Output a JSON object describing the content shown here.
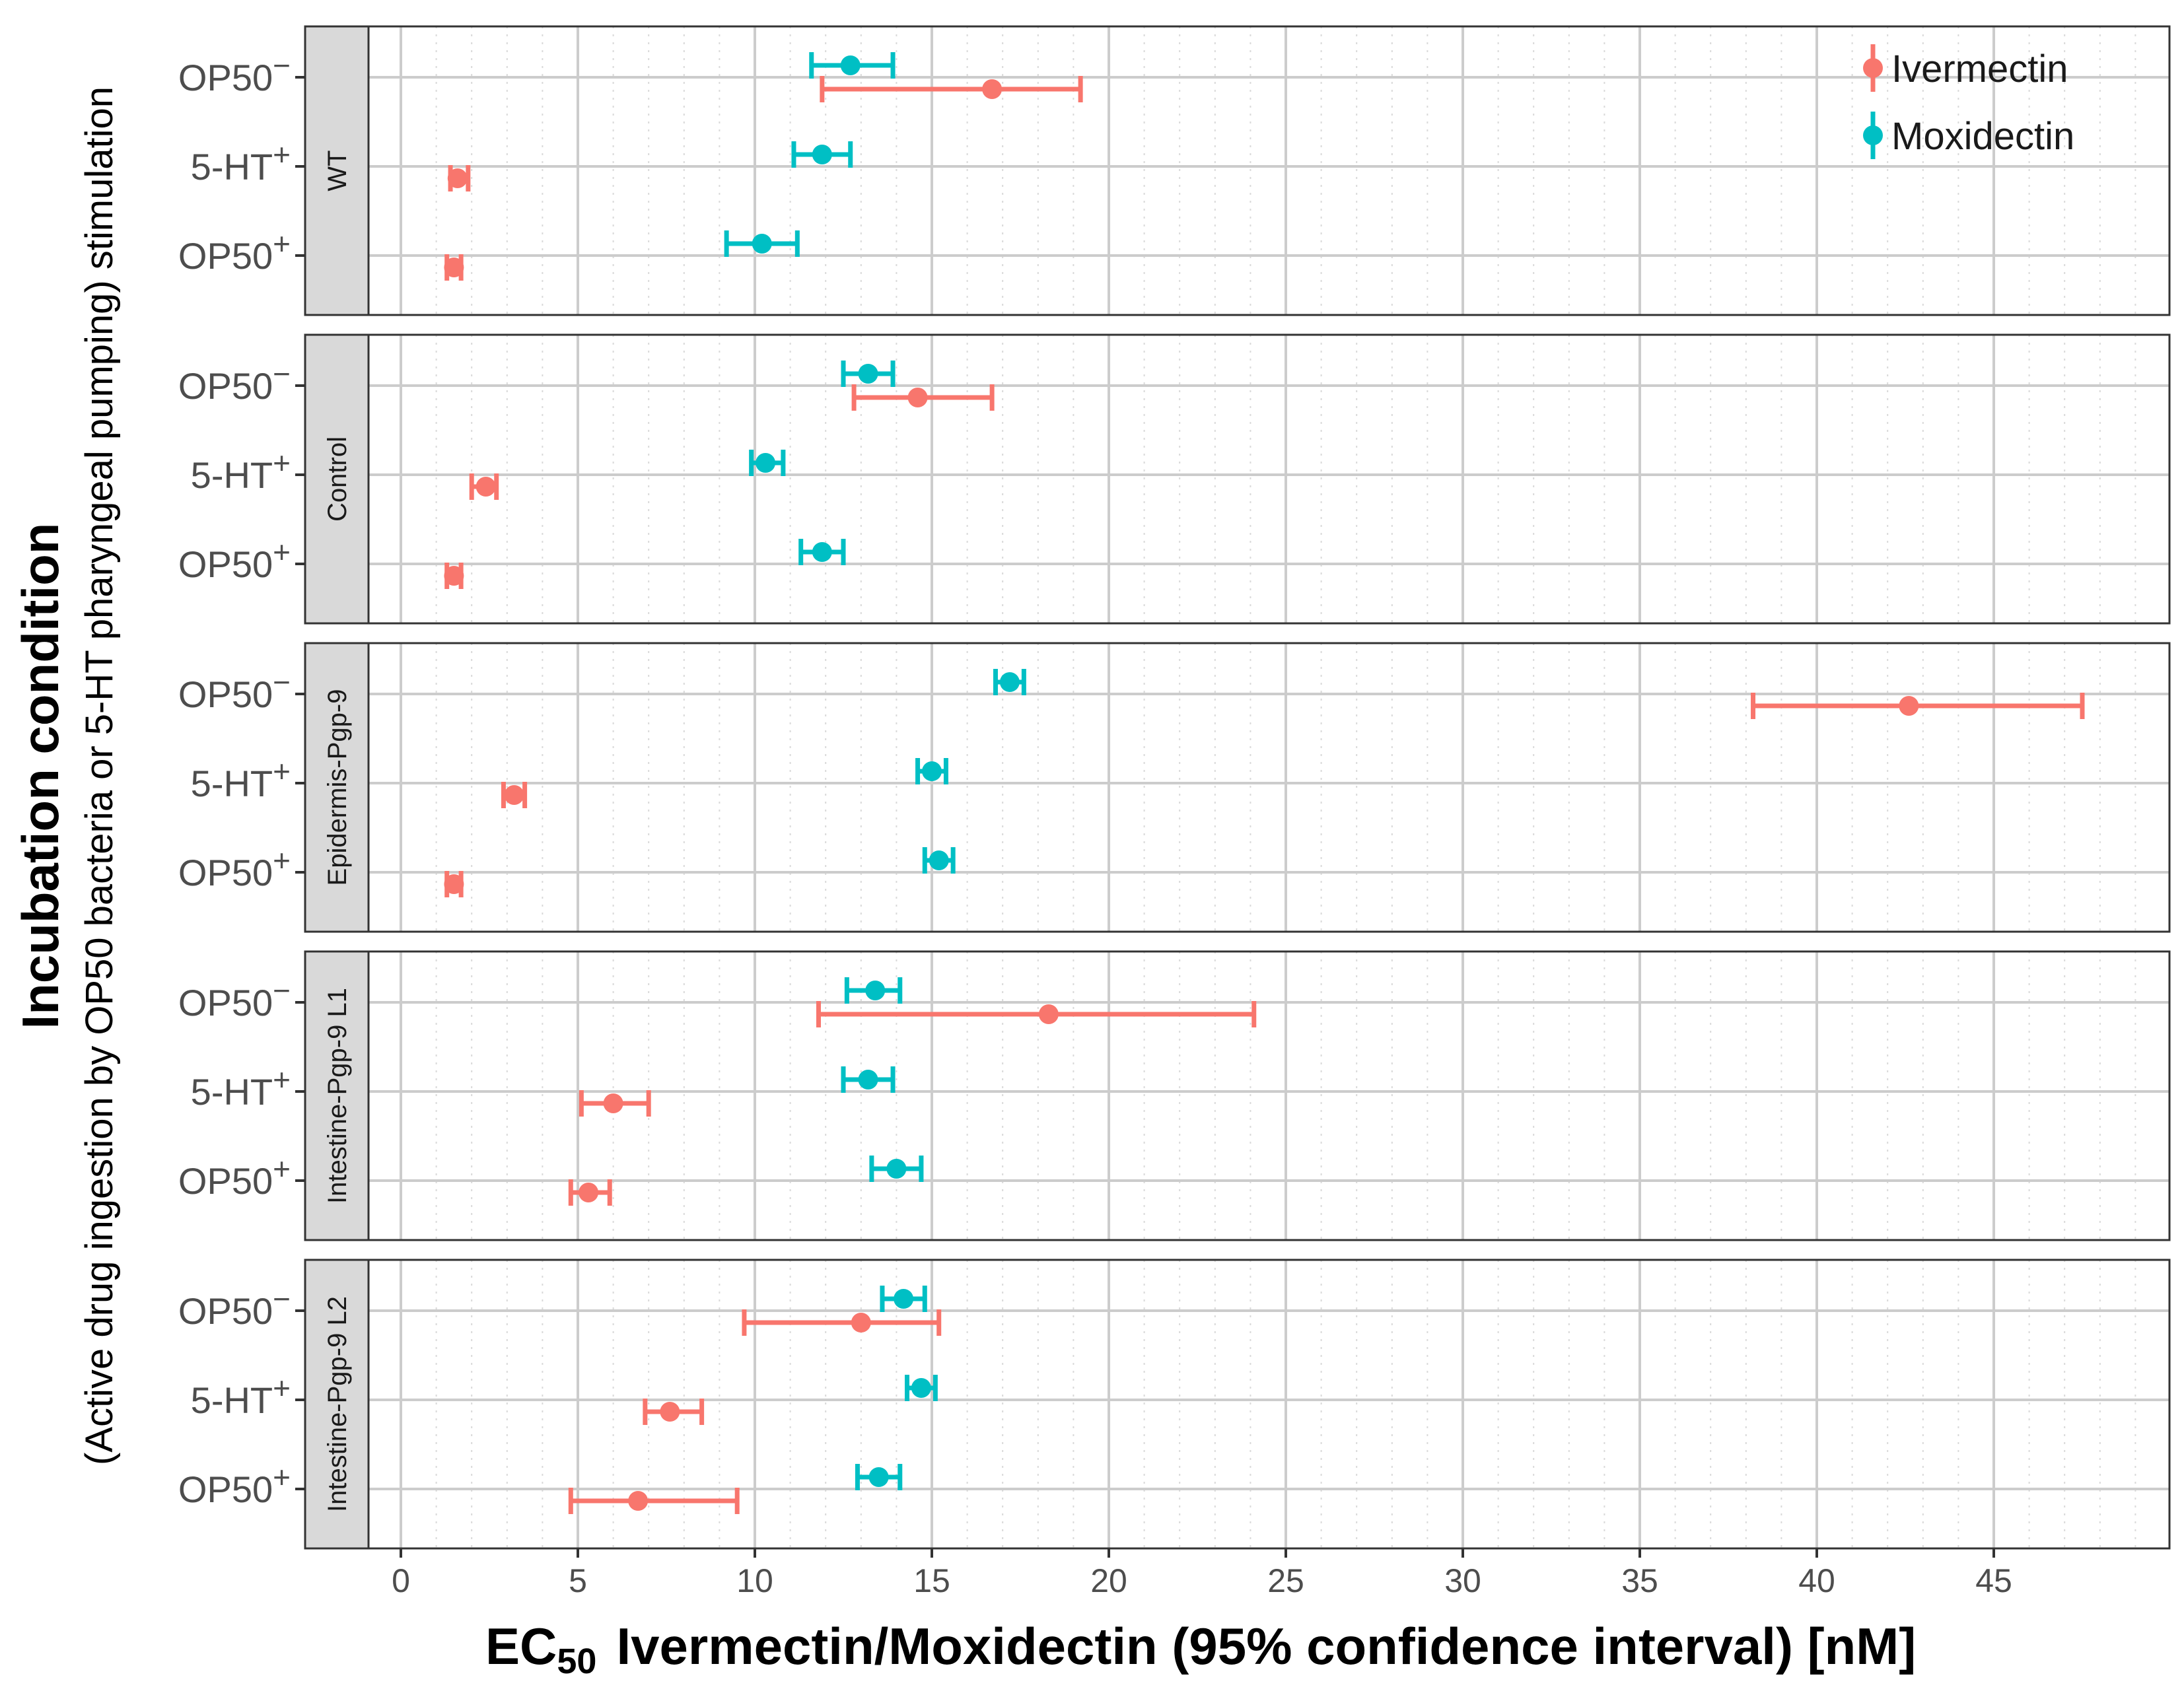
{
  "chart_data": {
    "type": "errorbar",
    "x_label": "Ivermectin/Moxidectin (95% confidence interval) [nM]",
    "x_label_prefix": "EC",
    "x_label_subscript": "50",
    "y_label_main": "Incubation condition",
    "y_label_sub": "(Active drug ingestion by OP50 bacteria or 5-HT pharyngeal pumping) stimulation",
    "x_range": [
      -2.7,
      49.5
    ],
    "x_ticks": [
      0,
      5,
      10,
      15,
      20,
      25,
      30,
      35,
      40,
      45
    ],
    "x_tick_labels": [
      "0",
      "5",
      "10",
      "15",
      "20",
      "25",
      "30",
      "35",
      "40",
      "45"
    ],
    "conditions": [
      {
        "base": "OP50",
        "sup": "−"
      },
      {
        "base": "5-HT",
        "sup": "+"
      },
      {
        "base": "OP50",
        "sup": "+"
      }
    ],
    "legend": [
      {
        "name": "Ivermectin",
        "color": "#F8766D"
      },
      {
        "name": "Moxidectin",
        "color": "#00BFC4"
      }
    ],
    "panels": [
      {
        "strip": "WT",
        "ivermectin": [
          {
            "condition": "OP50−",
            "ec50": 16.7,
            "lo": 11.9,
            "hi": 19.2
          },
          {
            "condition": "5-HT+",
            "ec50": 1.6,
            "lo": 1.4,
            "hi": 1.9
          },
          {
            "condition": "OP50+",
            "ec50": 1.5,
            "lo": 1.3,
            "hi": 1.7
          }
        ],
        "moxidectin": [
          {
            "condition": "OP50−",
            "ec50": 12.7,
            "lo": 11.6,
            "hi": 13.9
          },
          {
            "condition": "5-HT+",
            "ec50": 11.9,
            "lo": 11.1,
            "hi": 12.7
          },
          {
            "condition": "OP50+",
            "ec50": 10.2,
            "lo": 9.2,
            "hi": 11.2
          }
        ]
      },
      {
        "strip": "Control",
        "ivermectin": [
          {
            "condition": "OP50−",
            "ec50": 14.6,
            "lo": 12.8,
            "hi": 16.7
          },
          {
            "condition": "5-HT+",
            "ec50": 2.4,
            "lo": 2.0,
            "hi": 2.7
          },
          {
            "condition": "OP50+",
            "ec50": 1.5,
            "lo": 1.3,
            "hi": 1.7
          }
        ],
        "moxidectin": [
          {
            "condition": "OP50−",
            "ec50": 13.2,
            "lo": 12.5,
            "hi": 13.9
          },
          {
            "condition": "5-HT+",
            "ec50": 10.3,
            "lo": 9.9,
            "hi": 10.8
          },
          {
            "condition": "OP50+",
            "ec50": 11.9,
            "lo": 11.3,
            "hi": 12.5
          }
        ]
      },
      {
        "strip": "Epidermis-Pgp-9",
        "ivermectin": [
          {
            "condition": "OP50−",
            "ec50": 42.6,
            "lo": 38.2,
            "hi": 47.5
          },
          {
            "condition": "5-HT+",
            "ec50": 3.2,
            "lo": 2.9,
            "hi": 3.5
          },
          {
            "condition": "OP50+",
            "ec50": 1.5,
            "lo": 1.3,
            "hi": 1.7
          }
        ],
        "moxidectin": [
          {
            "condition": "OP50−",
            "ec50": 17.2,
            "lo": 16.8,
            "hi": 17.6
          },
          {
            "condition": "5-HT+",
            "ec50": 15.0,
            "lo": 14.6,
            "hi": 15.4
          },
          {
            "condition": "OP50+",
            "ec50": 15.2,
            "lo": 14.8,
            "hi": 15.6
          }
        ]
      },
      {
        "strip": "Intestine-Pgp-9 L1",
        "ivermectin": [
          {
            "condition": "OP50−",
            "ec50": 18.3,
            "lo": 11.8,
            "hi": 24.1
          },
          {
            "condition": "5-HT+",
            "ec50": 6.0,
            "lo": 5.1,
            "hi": 7.0
          },
          {
            "condition": "OP50+",
            "ec50": 5.3,
            "lo": 4.8,
            "hi": 5.9
          }
        ],
        "moxidectin": [
          {
            "condition": "OP50−",
            "ec50": 13.4,
            "lo": 12.6,
            "hi": 14.1
          },
          {
            "condition": "5-HT+",
            "ec50": 13.2,
            "lo": 12.5,
            "hi": 13.9
          },
          {
            "condition": "OP50+",
            "ec50": 14.0,
            "lo": 13.3,
            "hi": 14.7
          }
        ]
      },
      {
        "strip": "Intestine-Pgp-9 L2",
        "ivermectin": [
          {
            "condition": "OP50−",
            "ec50": 13.0,
            "lo": 9.7,
            "hi": 15.2
          },
          {
            "condition": "5-HT+",
            "ec50": 7.6,
            "lo": 6.9,
            "hi": 8.5
          },
          {
            "condition": "OP50+",
            "ec50": 6.7,
            "lo": 4.8,
            "hi": 9.5
          }
        ],
        "moxidectin": [
          {
            "condition": "OP50−",
            "ec50": 14.2,
            "lo": 13.6,
            "hi": 14.8
          },
          {
            "condition": "5-HT+",
            "ec50": 14.7,
            "lo": 14.3,
            "hi": 15.1
          },
          {
            "condition": "OP50+",
            "ec50": 13.5,
            "lo": 12.9,
            "hi": 14.1
          }
        ]
      }
    ]
  }
}
